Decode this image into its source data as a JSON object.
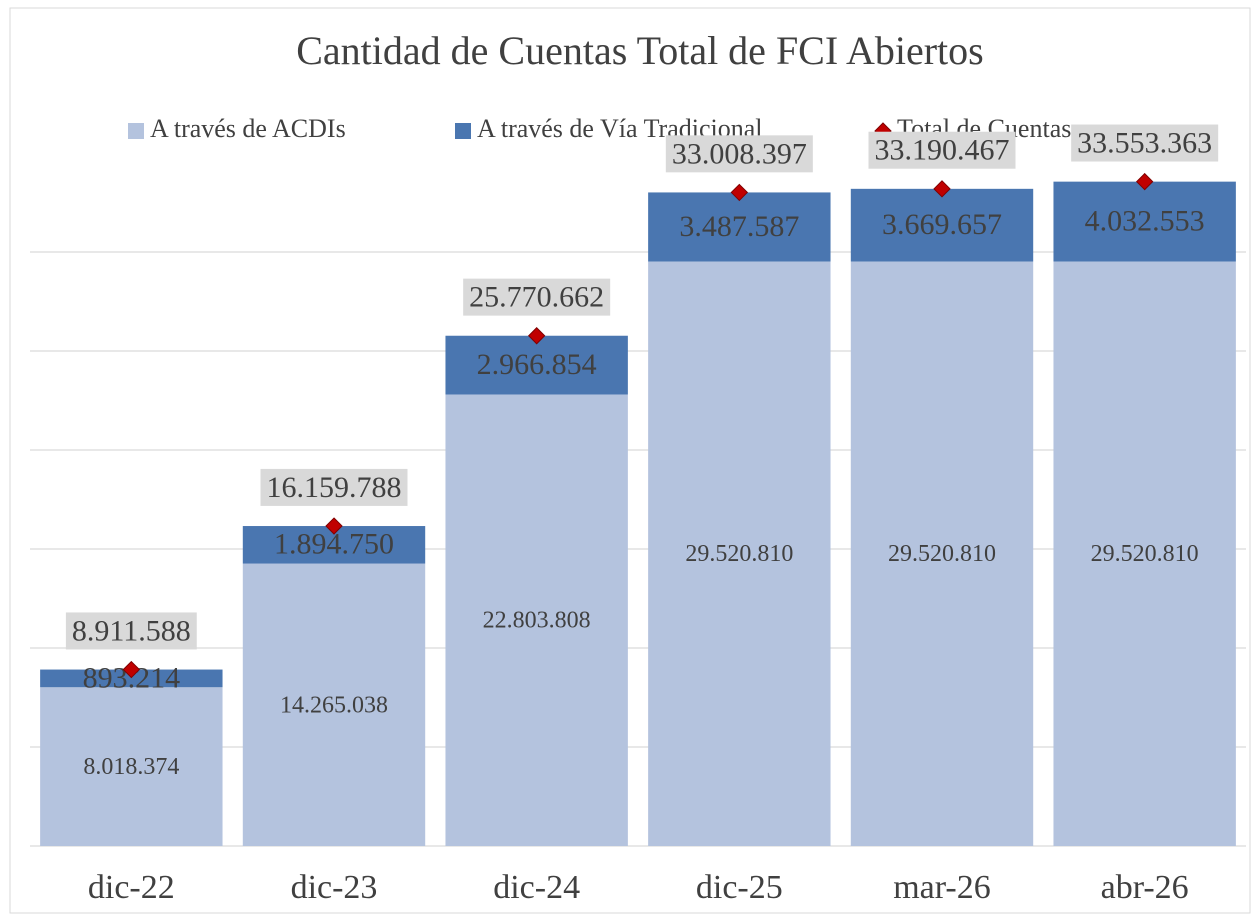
{
  "chart_data": {
    "type": "bar",
    "stacked": true,
    "title": "Cantidad de Cuentas Total de FCI Abiertos",
    "categories": [
      "dic-22",
      "dic-23",
      "dic-24",
      "dic-25",
      "mar-26",
      "abr-26"
    ],
    "series": [
      {
        "name": "A través de ACDIs",
        "color": "#b4c3de",
        "values": [
          8018374,
          14265038,
          22803808,
          29520810,
          29520810,
          29520810
        ],
        "value_labels": [
          "8.018.374",
          "14.265.038",
          "22.803.808",
          "29.520.810",
          "29.520.810",
          "29.520.810"
        ]
      },
      {
        "name": "A través de Vía Tradicional",
        "color": "#4a76b0",
        "values": [
          893214,
          1894750,
          2966854,
          3487587,
          3669657,
          4032553
        ],
        "value_labels": [
          "893.214",
          "1.894.750",
          "2.966.854",
          "3.487.587",
          "3.669.657",
          "4.032.553"
        ]
      },
      {
        "name": "Total de Cuentas",
        "color": "#c00000",
        "type": "marker",
        "values": [
          8911588,
          16159788,
          25770662,
          33008397,
          33190467,
          33553363
        ],
        "value_labels": [
          "8.911.588",
          "16.159.788",
          "25.770.662",
          "33.008.397",
          "33.190.467",
          "33.553.363"
        ]
      }
    ],
    "ylim": [
      0,
      35000000
    ],
    "yticks": [
      0,
      5000000,
      10000000,
      15000000,
      20000000,
      25000000,
      30000000
    ],
    "grid": true,
    "legend": "top"
  }
}
